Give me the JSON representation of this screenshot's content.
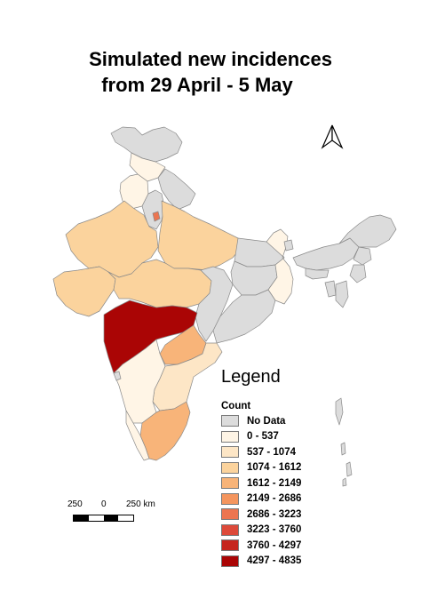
{
  "title": {
    "line1": "Simulated new incidences",
    "line2": "from 29 April - 5 May"
  },
  "legend": {
    "heading": "Legend",
    "subtitle": "Count",
    "items": [
      {
        "label": "No Data",
        "color": "#dcdcdc"
      },
      {
        "label": "0 - 537",
        "color": "#fff5e6"
      },
      {
        "label": "537 - 1074",
        "color": "#fde6c6"
      },
      {
        "label": "1074 - 1612",
        "color": "#fbd39d"
      },
      {
        "label": "1612 - 2149",
        "color": "#f8b479"
      },
      {
        "label": "2149 - 2686",
        "color": "#f4955e"
      },
      {
        "label": "2686 - 3223",
        "color": "#ec7550"
      },
      {
        "label": "3223 - 3760",
        "color": "#dd4a3a"
      },
      {
        "label": "3760 - 4297",
        "color": "#c5261e"
      },
      {
        "label": "4297 - 4835",
        "color": "#aa0505"
      }
    ]
  },
  "scale_bar": {
    "labels": [
      "250",
      "0",
      "250 km"
    ]
  },
  "north_arrow": {
    "icon": "north-arrow-icon"
  },
  "regions": [
    {
      "name": "Jammu & Kashmir",
      "class": "No Data"
    },
    {
      "name": "Himachal Pradesh",
      "class": "0 - 537"
    },
    {
      "name": "Punjab",
      "class": "0 - 537"
    },
    {
      "name": "Uttarakhand",
      "class": "No Data"
    },
    {
      "name": "Haryana",
      "class": "No Data"
    },
    {
      "name": "Delhi",
      "class": "2686 - 3223"
    },
    {
      "name": "Rajasthan",
      "class": "1074 - 1612"
    },
    {
      "name": "Uttar Pradesh",
      "class": "1074 - 1612"
    },
    {
      "name": "Gujarat",
      "class": "1074 - 1612"
    },
    {
      "name": "Madhya Pradesh",
      "class": "1074 - 1612"
    },
    {
      "name": "Bihar",
      "class": "No Data"
    },
    {
      "name": "Jharkhand",
      "class": "No Data"
    },
    {
      "name": "West Bengal",
      "class": "0 - 537"
    },
    {
      "name": "Chhattisgarh",
      "class": "No Data"
    },
    {
      "name": "Odisha",
      "class": "No Data"
    },
    {
      "name": "Maharashtra",
      "class": "4297 - 4835"
    },
    {
      "name": "Telangana",
      "class": "1612 - 2149"
    },
    {
      "name": "Andhra Pradesh",
      "class": "537 - 1074"
    },
    {
      "name": "Karnataka",
      "class": "0 - 537"
    },
    {
      "name": "Goa",
      "class": "No Data"
    },
    {
      "name": "Kerala",
      "class": "0 - 537"
    },
    {
      "name": "Tamil Nadu",
      "class": "1612 - 2149"
    },
    {
      "name": "Sikkim",
      "class": "No Data"
    },
    {
      "name": "Assam",
      "class": "No Data"
    },
    {
      "name": "Arunachal Pradesh",
      "class": "No Data"
    },
    {
      "name": "Meghalaya",
      "class": "No Data"
    },
    {
      "name": "Nagaland",
      "class": "No Data"
    },
    {
      "name": "Manipur",
      "class": "No Data"
    },
    {
      "name": "Mizoram",
      "class": "No Data"
    },
    {
      "name": "Tripura",
      "class": "No Data"
    },
    {
      "name": "Andaman & Nicobar",
      "class": "No Data"
    }
  ]
}
